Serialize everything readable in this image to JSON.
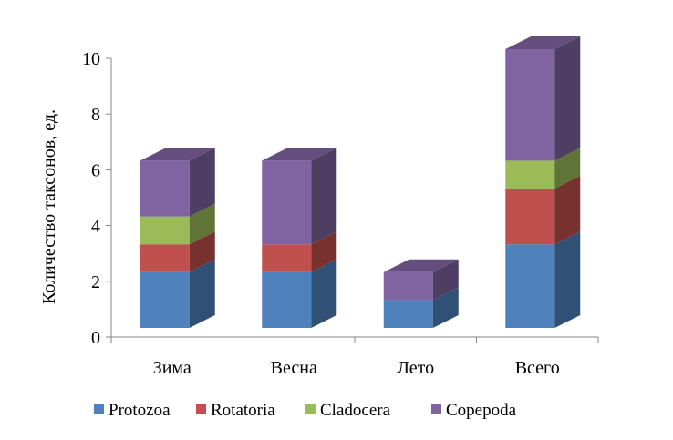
{
  "chart_data": {
    "type": "bar",
    "stacked": true,
    "style": "3d",
    "categories": [
      "Зима",
      "Весна",
      "Лето",
      "Всего"
    ],
    "series": [
      {
        "name": "Protozoa",
        "values": [
          2,
          2,
          1,
          3
        ],
        "color": "#4F81BD"
      },
      {
        "name": "Rotatoria",
        "values": [
          1,
          1,
          0,
          2
        ],
        "color": "#C0504D"
      },
      {
        "name": "Cladocera",
        "values": [
          1,
          0,
          0,
          1
        ],
        "color": "#9BBB59"
      },
      {
        "name": "Copepoda",
        "values": [
          2,
          3,
          1,
          4
        ],
        "color": "#8064A2"
      }
    ],
    "ylabel": "Количество таксонов, ед.",
    "xlabel": "",
    "ylim": [
      0,
      10
    ],
    "yticks": [
      0,
      2,
      4,
      6,
      8,
      10
    ],
    "grid": false,
    "legend": "bottom"
  }
}
